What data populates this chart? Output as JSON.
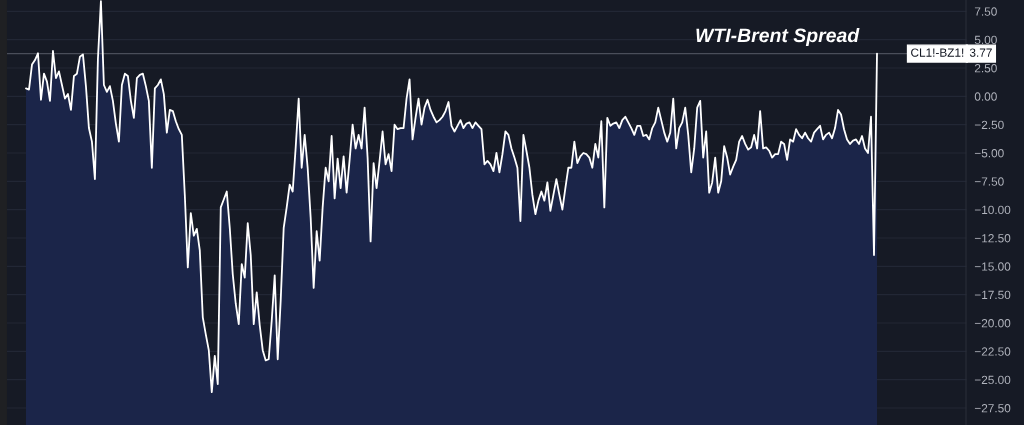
{
  "chart_data": {
    "type": "line",
    "title": "WTI-Brent Spread",
    "categories": [
      null,
      null,
      null,
      null,
      null,
      null,
      null,
      null,
      null,
      null,
      null,
      null,
      null,
      null,
      null,
      null,
      null,
      null,
      null,
      null,
      null,
      null,
      null,
      null,
      null,
      null,
      null,
      null,
      null,
      null,
      null,
      null,
      null,
      null,
      null,
      null,
      null,
      null,
      null,
      null,
      null,
      null,
      null,
      null,
      null,
      null,
      null,
      null,
      null,
      null,
      null,
      null,
      null,
      null,
      null,
      null,
      null,
      null,
      null,
      null,
      null,
      null,
      null,
      null,
      null,
      null,
      null,
      null,
      null,
      null,
      null,
      null,
      null,
      null,
      null,
      null,
      null,
      null,
      null,
      null,
      null,
      null,
      null,
      null,
      null,
      null,
      null,
      null,
      null,
      null,
      null,
      null,
      null,
      null,
      null,
      null,
      null,
      null,
      null,
      null,
      null,
      null,
      null,
      null,
      null,
      null,
      null,
      null,
      null,
      null,
      null,
      null,
      null,
      null,
      null,
      null,
      null,
      null,
      null,
      null,
      null,
      null,
      null,
      null,
      null,
      null,
      null,
      null,
      null,
      null,
      null,
      null,
      null,
      null,
      null,
      null,
      null,
      null,
      null,
      null,
      null,
      null,
      null,
      null,
      null,
      null,
      null,
      null,
      null,
      null,
      null,
      null,
      null,
      null,
      null,
      null,
      null,
      null,
      null,
      null,
      null,
      null,
      null,
      null,
      null,
      null,
      null,
      null,
      null,
      null,
      null,
      null,
      null,
      null,
      null,
      null,
      null,
      null,
      null,
      null,
      null,
      null,
      null,
      null,
      null,
      null,
      null,
      null,
      null,
      null,
      null,
      null,
      null,
      null,
      null,
      null,
      null,
      null,
      null,
      null,
      null,
      null,
      null,
      null,
      null,
      null,
      null,
      null,
      null,
      null,
      null,
      null,
      null,
      null,
      null,
      null,
      null,
      null,
      null,
      null,
      null,
      null,
      null,
      null,
      null,
      null,
      null,
      null,
      null,
      null,
      null,
      null,
      null,
      null,
      null,
      null,
      null,
      null,
      null,
      null,
      null,
      null,
      null,
      null,
      null,
      null,
      null,
      null,
      null,
      null,
      null,
      null,
      null,
      null,
      null,
      null,
      null,
      null,
      null,
      null,
      null,
      null,
      null,
      null,
      null,
      null,
      null,
      null,
      null,
      null,
      null,
      null,
      null,
      null,
      null,
      null,
      null,
      null,
      null,
      null,
      null,
      null,
      null,
      null,
      null
    ],
    "series": [
      {
        "color": "#ffffff",
        "values": [
          0.7,
          0.6,
          2.8,
          3.2,
          3.8,
          -0.3,
          2.0,
          1.3,
          -0.4,
          4.0,
          1.6,
          2.2,
          1.0,
          -0.2,
          0.2,
          -1.2,
          1.8,
          2.0,
          3.5,
          3.7,
          0.9,
          -2.8,
          -4.0,
          -7.3,
          3.3,
          8.4,
          1.0,
          0.4,
          0.9,
          -0.4,
          -2.4,
          -4.0,
          1.0,
          2.0,
          1.8,
          -0.4,
          -1.9,
          1.6,
          1.9,
          2.0,
          0.9,
          -0.4,
          -6.3,
          0.7,
          1.0,
          1.5,
          0.2,
          -3.2,
          -1.2,
          -1.3,
          -2.2,
          -2.9,
          -3.4,
          -8.7,
          -15.1,
          -10.3,
          -12.3,
          -11.7,
          -13.6,
          -19.5,
          -21.0,
          -22.4,
          -26.1,
          -22.9,
          -25.4,
          -9.8,
          -9.1,
          -8.4,
          -11.6,
          -15.7,
          -18.3,
          -20.1,
          -14.8,
          -16.0,
          -11.2,
          -14.0,
          -20.1,
          -17.3,
          -20.2,
          -22.4,
          -23.3,
          -23.2,
          -19.8,
          -15.8,
          -23.2,
          -18.0,
          -11.6,
          -9.8,
          -7.8,
          -8.4,
          -4.5,
          -0.2,
          -6.3,
          -3.4,
          -6.3,
          -10.7,
          -16.9,
          -11.9,
          -14.5,
          -9.8,
          -6.3,
          -7.5,
          -3.5,
          -9.0,
          -5.5,
          -8.1,
          -5.3,
          -8.5,
          -5.6,
          -2.5,
          -4.6,
          -3.4,
          -4.6,
          -1.0,
          -5.4,
          -12.8,
          -5.9,
          -8.1,
          -5.7,
          -3.1,
          -6.0,
          -5.1,
          -6.6,
          -2.5,
          -2.9,
          -2.8,
          -2.8,
          -0.2,
          1.5,
          -3.8,
          -1.9,
          -0.2,
          -2.5,
          -1.0,
          -0.3,
          -1.2,
          -1.8,
          -2.3,
          -2.1,
          -1.8,
          -1.3,
          -0.5,
          -2.6,
          -3.1,
          -2.6,
          -2.1,
          -2.8,
          -2.4,
          -2.3,
          -2.8,
          -2.3,
          -2.6,
          -2.9,
          -6.0,
          -5.7,
          -6.0,
          -6.6,
          -5.0,
          -6.7,
          -5.1,
          -3.1,
          -3.4,
          -4.6,
          -5.4,
          -6.3,
          -11.0,
          -3.4,
          -4.8,
          -6.3,
          -8.7,
          -10.4,
          -9.2,
          -8.4,
          -9.2,
          -7.6,
          -10.1,
          -8.7,
          -7.3,
          -8.7,
          -10.0,
          -8.1,
          -6.3,
          -6.3,
          -4.0,
          -5.9,
          -5.3,
          -5.0,
          -5.1,
          -5.4,
          -6.3,
          -4.2,
          -5.4,
          -2.2,
          -9.8,
          -1.9,
          -2.6,
          -2.4,
          -2.3,
          -2.8,
          -2.1,
          -1.8,
          -2.3,
          -2.8,
          -3.4,
          -2.6,
          -2.6,
          -3.5,
          -3.4,
          -3.8,
          -2.8,
          -2.3,
          -1.0,
          -2.1,
          -3.2,
          -4.0,
          -3.2,
          -0.2,
          -4.6,
          -2.8,
          -2.3,
          -1.0,
          -3.4,
          -6.7,
          -4.6,
          -1.0,
          -0.4,
          -5.4,
          -3.1,
          -8.5,
          -7.6,
          -5.4,
          -8.5,
          -7.5,
          -4.4,
          -5.4,
          -6.9,
          -6.2,
          -5.6,
          -4.0,
          -3.5,
          -4.2,
          -4.7,
          -4.5,
          -3.4,
          -4.6,
          -1.3,
          -4.6,
          -4.5,
          -4.8,
          -5.4,
          -5.1,
          -5.1,
          -4.0,
          -4.2,
          -5.6,
          -3.8,
          -4.0,
          -2.9,
          -3.4,
          -3.7,
          -3.2,
          -3.7,
          -4.0,
          -3.2,
          -2.9,
          -2.6,
          -3.8,
          -3.4,
          -3.2,
          -3.7,
          -2.8,
          -1.2,
          -1.6,
          -2.9,
          -3.8,
          -4.2,
          -3.9,
          -3.8,
          -4.2,
          -3.5,
          -4.6,
          -5.0,
          -1.8,
          -14.0,
          3.77
        ],
        "upper": [
          0.7,
          0.6,
          2.8,
          3.2,
          3.8,
          -0.3,
          2.0,
          1.3,
          -0.4,
          4.0,
          1.6,
          2.2,
          1.0,
          -0.2,
          0.2,
          -1.2,
          1.8,
          2.0,
          3.5,
          3.7,
          0.9,
          -2.8,
          -4.0,
          -7.3,
          3.3,
          8.4,
          1.0,
          0.4,
          0.9,
          -0.4,
          -2.4,
          -4.0,
          1.0,
          2.0,
          1.8,
          -0.4,
          -1.9,
          1.6,
          1.9,
          2.0,
          0.9,
          -0.4,
          -6.3,
          0.7,
          1.0,
          1.5,
          0.2,
          -3.2,
          -1.2,
          -1.3,
          -2.2,
          -2.9,
          -3.4,
          -8.7,
          -15.1,
          -10.3,
          -12.3,
          -11.7,
          -13.6,
          -19.5,
          -21.0,
          -22.4,
          -26.1,
          -22.9,
          -25.4,
          -9.8,
          -9.1,
          -8.4,
          -11.6,
          -15.7,
          -18.3,
          -20.1,
          -14.8,
          -16.0,
          -11.2,
          -14.0,
          -20.1,
          -17.3,
          -20.2,
          -22.4,
          -23.3,
          -23.2,
          -19.8,
          -15.8,
          -23.2,
          -18.0,
          -11.6,
          -9.8,
          -7.8,
          -8.4,
          -4.5,
          -0.2,
          -6.3,
          -3.4,
          -6.3,
          -10.7,
          -16.9,
          -11.9,
          -14.5,
          -9.8,
          -6.3,
          -7.5,
          -3.5,
          -9.0,
          -5.5,
          -8.1,
          -5.3,
          -8.5,
          -5.6,
          -2.5,
          -4.6,
          -3.4,
          -4.6,
          -1.0,
          -5.4,
          -12.8,
          -5.9,
          -8.1,
          -5.7,
          -3.1,
          -6.0,
          -5.1,
          -6.6,
          -2.5,
          -2.9,
          -2.8,
          -2.8,
          -0.2,
          1.5,
          -3.8,
          -1.9,
          -0.2,
          -2.5,
          -1.0,
          -0.3,
          -1.2,
          -1.8,
          -2.3,
          -2.1,
          -1.8,
          -1.3,
          -0.5,
          -2.6,
          -3.1,
          -2.6,
          -2.1,
          -2.8,
          -2.4,
          -2.3,
          -2.8,
          -2.3,
          -2.6,
          -2.9,
          -6.0,
          -5.7,
          -6.0,
          -6.6,
          -5.0,
          -6.7,
          -5.1,
          -3.1,
          -3.4,
          -4.6,
          -5.4,
          -6.3,
          -11.0,
          -3.4,
          -4.8,
          -6.3,
          -8.7,
          -10.4,
          -9.2,
          -8.4,
          -9.2,
          -7.6,
          -10.1,
          -8.7,
          -7.3,
          -8.7,
          -10.0,
          -8.1,
          -6.3,
          -6.3,
          -4.0,
          -5.9,
          -5.3,
          -5.0,
          -5.1,
          -5.4,
          -6.3,
          -4.2,
          -5.4,
          -2.2,
          -9.8,
          -1.9,
          -2.6,
          -2.4,
          -2.3,
          -2.8,
          -2.1,
          -1.8,
          -2.3,
          -2.8,
          -3.4,
          -2.6,
          -2.6,
          -3.5,
          -3.4,
          -3.8,
          -2.8,
          -2.3,
          -1.0,
          -2.1,
          -3.2,
          -4.0,
          -3.2,
          -0.2,
          -4.6,
          -2.8,
          -2.3,
          -1.0,
          -3.4,
          -6.7,
          -4.6,
          -1.0,
          -0.4,
          -5.4,
          -3.1,
          -8.5,
          -7.6,
          -5.4,
          -8.5,
          -7.5,
          -4.4,
          -5.4,
          -6.9,
          -6.2,
          -5.6,
          -4.0,
          -3.5,
          -4.2,
          -4.7,
          -4.5,
          -3.4,
          -4.6,
          -1.3,
          -4.6,
          -4.5,
          -4.8,
          -5.4,
          -5.1,
          -5.1,
          -4.0,
          -4.2,
          -5.6,
          -3.8,
          -4.0,
          -2.9,
          -3.4,
          -3.7,
          -3.2,
          -3.7,
          -4.0,
          -3.2,
          -2.9,
          -2.6,
          -3.8,
          -3.4,
          -3.2,
          -3.7,
          -2.8,
          -1.2,
          -1.6,
          -2.9,
          -3.8,
          -4.2,
          -3.9,
          -3.8,
          -4.2,
          -3.5,
          -4.6,
          -5.0,
          -1.8,
          -14.0,
          3.77
        ],
        "lower": [
          -29.0,
          -29.0,
          -29.0,
          -29.0,
          -29.0,
          -29.0,
          -29.0,
          -29.0,
          -29.0,
          -29.0,
          -29.0,
          -29.0,
          -29.0,
          -29.0,
          -29.0,
          -29.0,
          -29.0,
          -29.0,
          -29.0,
          -29.0,
          -29.0,
          -29.0,
          -29.0,
          -29.0,
          -29.0,
          -29.0,
          -29.0,
          -29.0,
          -29.0,
          -29.0,
          -29.0,
          -29.0,
          -29.0,
          -29.0,
          -29.0,
          -29.0,
          -29.0,
          -29.0,
          -29.0,
          -29.0,
          -29.0,
          -29.0,
          -29.0,
          -29.0,
          -29.0,
          -29.0,
          -29.0,
          -29.0,
          -29.0,
          -29.0,
          -29.0,
          -29.0,
          -29.0,
          -29.0,
          -29.0,
          -29.0,
          -29.0,
          -29.0,
          -29.0,
          -29.0,
          -29.0,
          -29.0,
          -29.0,
          -29.0,
          -29.0,
          -29.0,
          -29.0,
          -29.0,
          -29.0,
          -29.0,
          -29.0,
          -29.0,
          -29.0,
          -29.0,
          -29.0,
          -29.0,
          -29.0,
          -29.0,
          -29.0,
          -29.0,
          -29.0,
          -29.0,
          -29.0,
          -29.0,
          -29.0,
          -29.0,
          -29.0,
          -29.0,
          -29.0,
          -29.0,
          -29.0,
          -29.0,
          -29.0,
          -29.0,
          -29.0,
          -29.0,
          -29.0,
          -29.0,
          -29.0,
          -29.0,
          -29.0,
          -29.0,
          -29.0,
          -29.0,
          -29.0,
          -29.0,
          -29.0,
          -29.0,
          -29.0,
          -29.0,
          -29.0,
          -29.0,
          -29.0,
          -29.0,
          -29.0,
          -29.0,
          -29.0,
          -29.0,
          -29.0,
          -29.0,
          -29.0,
          -29.0,
          -29.0,
          -29.0,
          -29.0,
          -29.0,
          -29.0,
          -29.0,
          -29.0,
          -29.0,
          -29.0,
          -29.0,
          -29.0,
          -29.0,
          -29.0,
          -29.0,
          -29.0,
          -29.0,
          -29.0,
          -29.0,
          -29.0,
          -29.0,
          -29.0,
          -29.0,
          -29.0,
          -29.0,
          -29.0,
          -29.0,
          -29.0,
          -29.0,
          -29.0,
          -29.0,
          -29.0,
          -29.0,
          -29.0,
          -29.0,
          -29.0,
          -29.0,
          -29.0,
          -29.0,
          -29.0,
          -29.0,
          -29.0,
          -29.0,
          -29.0,
          -29.0,
          -29.0,
          -29.0,
          -29.0,
          -29.0,
          -29.0,
          -29.0,
          -29.0,
          -29.0,
          -29.0,
          -29.0,
          -29.0,
          -29.0,
          -29.0,
          -29.0,
          -29.0,
          -29.0,
          -29.0,
          -29.0,
          -29.0,
          -29.0,
          -29.0,
          -29.0,
          -29.0,
          -29.0,
          -29.0,
          -29.0,
          -29.0,
          -29.0,
          -29.0,
          -29.0,
          -29.0,
          -29.0,
          -29.0,
          -29.0,
          -29.0,
          -29.0,
          -29.0,
          -29.0,
          -29.0,
          -29.0,
          -29.0,
          -29.0,
          -29.0,
          -29.0,
          -29.0,
          -29.0,
          -29.0,
          -29.0,
          -29.0,
          -29.0,
          -29.0,
          -29.0,
          -29.0,
          -29.0,
          -29.0,
          -29.0,
          -29.0,
          -29.0,
          -29.0,
          -29.0,
          -29.0,
          -29.0,
          -29.0,
          -29.0,
          -29.0,
          -29.0,
          -29.0,
          -29.0,
          -29.0,
          -29.0,
          -29.0,
          -29.0,
          -29.0,
          -29.0,
          -29.0,
          -29.0,
          -29.0,
          -29.0,
          -29.0,
          -29.0,
          -29.0,
          -29.0,
          -29.0,
          -29.0,
          -29.0,
          -29.0,
          -29.0,
          -29.0,
          -29.0,
          -29.0,
          -29.0,
          -29.0,
          -29.0,
          -29.0,
          -29.0,
          -29.0,
          -29.0,
          -29.0,
          -29.0,
          -29.0,
          -29.0,
          -29.0,
          -29.0,
          -29.0,
          -29.0,
          -29.0,
          -29.0,
          -29.0,
          -29.0,
          -29.0,
          -29.0,
          -29.0,
          -29.0,
          -29.0,
          -29.0,
          -29.0,
          -29.0,
          -29.0,
          -29.0
        ]
      }
    ],
    "ylim": [
      -29.0,
      8.5
    ],
    "yticks": [
      {
        "value": 7.5,
        "label": "7.50"
      },
      {
        "value": 5,
        "label": "5.00"
      },
      {
        "value": 2.5,
        "label": "2.50"
      },
      {
        "value": 0,
        "label": "0.00"
      },
      {
        "value": -2.5,
        "label": "−2.50"
      },
      {
        "value": -5,
        "label": "−5.00"
      },
      {
        "value": -7.5,
        "label": "−7.50"
      },
      {
        "value": -10,
        "label": "−10.00"
      },
      {
        "value": -12.5,
        "label": "−12.50"
      },
      {
        "value": -15,
        "label": "−15.00"
      },
      {
        "value": -17.5,
        "label": "−17.50"
      },
      {
        "value": -20,
        "label": "−20.00"
      },
      {
        "value": -22.5,
        "label": "−22.50"
      },
      {
        "value": -25,
        "label": "−25.00"
      },
      {
        "value": -27.5,
        "label": "−27.50"
      }
    ],
    "ref_lines": [
      {
        "axis": "y",
        "value": 3.77,
        "label": "CL1!-BZ1!",
        "color": "#4a4e5a"
      }
    ],
    "annotations": [
      "3.77"
    ],
    "grid": "y",
    "tick_labels": "y"
  }
}
